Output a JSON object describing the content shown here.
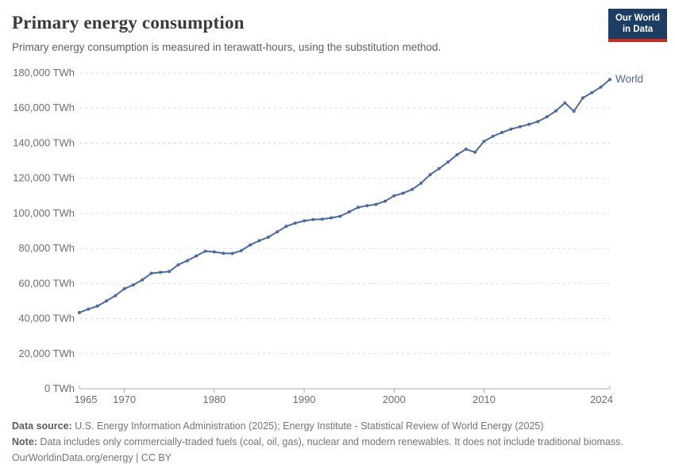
{
  "header": {
    "title": "Primary energy consumption",
    "subtitle": "Primary energy consumption is measured in terawatt-hours, using the substitution method."
  },
  "logo": {
    "line1": "Our World",
    "line2": "in Data",
    "bg_color": "#1d3d63",
    "bar_color": "#cf2a1e"
  },
  "chart_data": {
    "type": "line",
    "title": "Primary energy consumption",
    "unit": "TWh",
    "series": [
      {
        "name": "World",
        "color": "#4c6a9c",
        "x": [
          1965,
          1966,
          1967,
          1968,
          1969,
          1970,
          1971,
          1972,
          1973,
          1974,
          1975,
          1976,
          1977,
          1978,
          1979,
          1980,
          1981,
          1982,
          1983,
          1984,
          1985,
          1986,
          1987,
          1988,
          1989,
          1990,
          1991,
          1992,
          1993,
          1994,
          1995,
          1996,
          1997,
          1998,
          1999,
          2000,
          2001,
          2002,
          2003,
          2004,
          2005,
          2006,
          2007,
          2008,
          2009,
          2010,
          2011,
          2012,
          2013,
          2014,
          2015,
          2016,
          2017,
          2018,
          2019,
          2020,
          2021,
          2022,
          2023,
          2024
        ],
        "values": [
          43400,
          45400,
          47100,
          50000,
          53100,
          57000,
          59200,
          62100,
          65800,
          66400,
          66800,
          70700,
          73000,
          75700,
          78400,
          78000,
          77200,
          77100,
          78700,
          82000,
          84400,
          86400,
          89400,
          92600,
          94400,
          95700,
          96400,
          96700,
          97400,
          98300,
          100800,
          103400,
          104400,
          105100,
          106900,
          110000,
          111500,
          113600,
          117200,
          122000,
          125500,
          129200,
          133400,
          136600,
          134800,
          141000,
          143900,
          146100,
          148000,
          149400,
          150700,
          152300,
          155000,
          158400,
          163000,
          158200,
          165800,
          168800,
          172000,
          176300
        ]
      }
    ],
    "xlim": [
      1965,
      2024
    ],
    "ylim": [
      0,
      180000
    ],
    "grid": "dashed-horizontal",
    "legend_position": "end-of-line",
    "y_ticks": [
      {
        "value": 0,
        "label": "0 TWh"
      },
      {
        "value": 20000,
        "label": "20,000 TWh"
      },
      {
        "value": 40000,
        "label": "40,000 TWh"
      },
      {
        "value": 60000,
        "label": "60,000 TWh"
      },
      {
        "value": 80000,
        "label": "80,000 TWh"
      },
      {
        "value": 100000,
        "label": "100,000 TWh"
      },
      {
        "value": 120000,
        "label": "120,000 TWh"
      },
      {
        "value": 140000,
        "label": "140,000 TWh"
      },
      {
        "value": 160000,
        "label": "160,000 TWh"
      },
      {
        "value": 180000,
        "label": "180,000 TWh"
      }
    ],
    "x_ticks": [
      {
        "year": 1965,
        "label": "1965",
        "tick_mark": false
      },
      {
        "year": 1970,
        "label": "1970",
        "tick_mark": true
      },
      {
        "year": 1980,
        "label": "1980",
        "tick_mark": true
      },
      {
        "year": 1990,
        "label": "1990",
        "tick_mark": true
      },
      {
        "year": 2000,
        "label": "2000",
        "tick_mark": true
      },
      {
        "year": 2010,
        "label": "2010",
        "tick_mark": true
      },
      {
        "year": 2024,
        "label": "2024",
        "tick_mark": false
      }
    ],
    "colors": {
      "gridline": "#dcdcdc",
      "axis": "#a8a8a8",
      "tick_label": "#6e6e6e"
    }
  },
  "footer": {
    "datasource_label": "Data source:",
    "datasource_text": " U.S. Energy Information Administration (2025); Energy Institute - Statistical Review of World Energy (2025)",
    "note_label": "Note:",
    "note_text": " Data includes only commercially-traded fuels (coal, oil, gas), nuclear and modern renewables. It does not include traditional biomass.",
    "license_text": "OurWorldinData.org/energy | CC BY"
  }
}
